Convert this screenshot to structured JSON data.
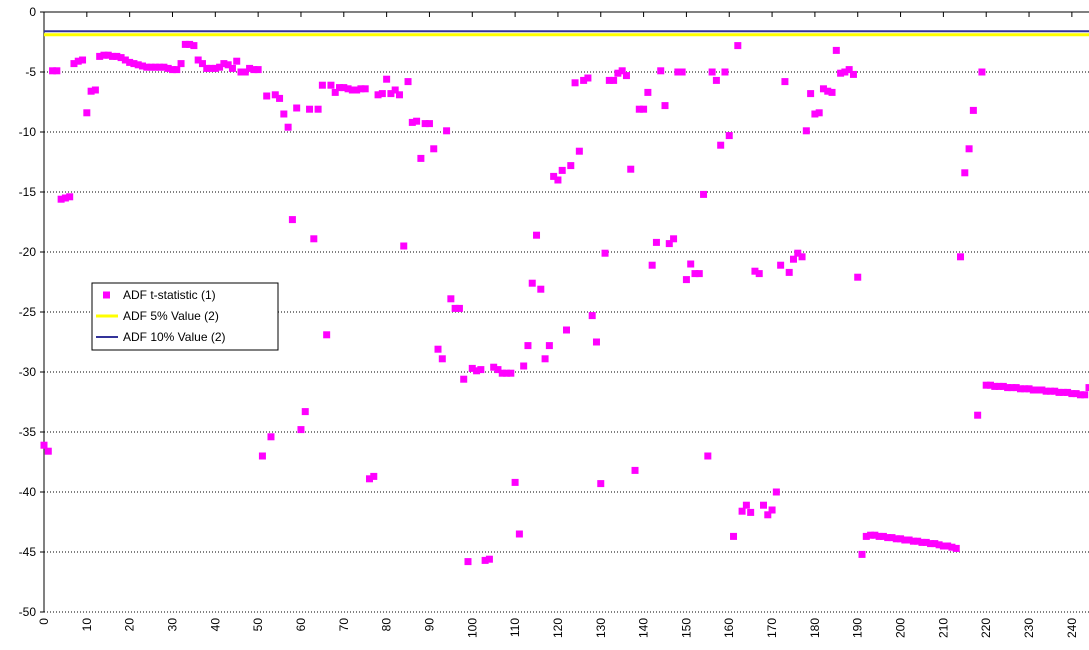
{
  "chart_data": {
    "type": "scatter",
    "xlim": [
      0,
      244
    ],
    "ylim": [
      -50,
      0
    ],
    "xticks": [
      0,
      10,
      20,
      30,
      40,
      50,
      60,
      70,
      80,
      90,
      100,
      110,
      120,
      130,
      140,
      150,
      160,
      170,
      180,
      190,
      200,
      210,
      220,
      230,
      240
    ],
    "yticks": [
      0,
      -5,
      -10,
      -15,
      -20,
      -25,
      -30,
      -35,
      -40,
      -45,
      -50
    ],
    "grid": true,
    "legend": "left",
    "series": [
      {
        "name": "ADF t-statistic (1)",
        "color": "#ff00ff",
        "kind": "marker",
        "x": [
          0,
          1,
          2,
          3,
          4,
          5,
          6,
          7,
          8,
          9,
          10,
          11,
          12,
          13,
          14,
          15,
          16,
          17,
          18,
          19,
          20,
          21,
          22,
          23,
          24,
          25,
          26,
          27,
          28,
          29,
          30,
          31,
          32,
          33,
          34,
          35,
          36,
          37,
          38,
          39,
          40,
          41,
          42,
          43,
          44,
          45,
          46,
          47,
          48,
          49,
          50,
          51,
          52,
          53,
          54,
          55,
          56,
          57,
          58,
          59,
          60,
          61,
          62,
          63,
          64,
          65,
          66,
          67,
          68,
          69,
          70,
          71,
          72,
          73,
          74,
          75,
          76,
          77,
          78,
          79,
          80,
          81,
          82,
          83,
          84,
          85,
          86,
          87,
          88,
          89,
          90,
          91,
          92,
          93,
          94,
          95,
          96,
          97,
          98,
          99,
          100,
          101,
          102,
          103,
          104,
          105,
          106,
          107,
          108,
          109,
          110,
          111,
          112,
          113,
          114,
          115,
          116,
          117,
          118,
          119,
          120,
          121,
          122,
          123,
          124,
          125,
          126,
          127,
          128,
          129,
          130,
          131,
          132,
          133,
          134,
          135,
          136,
          137,
          138,
          139,
          140,
          141,
          142,
          143,
          144,
          145,
          146,
          147,
          148,
          149,
          150,
          151,
          152,
          153,
          154,
          155,
          156,
          157,
          158,
          159,
          160,
          161,
          162,
          163,
          164,
          165,
          166,
          167,
          168,
          169,
          170,
          171,
          172,
          173,
          174,
          175,
          176,
          177,
          178,
          179,
          180,
          181,
          182,
          183,
          184,
          185,
          186,
          187,
          188,
          189,
          190,
          191,
          192,
          193,
          194,
          195,
          196,
          197,
          198,
          199,
          200,
          201,
          202,
          203,
          204,
          205,
          206,
          207,
          208,
          209,
          210,
          211,
          212,
          213,
          214,
          215,
          216,
          217,
          218,
          219,
          220,
          221,
          222,
          223,
          224,
          225,
          226,
          227,
          228,
          229,
          230,
          231,
          232,
          233,
          234,
          235,
          236,
          237,
          238,
          239,
          240,
          241,
          242,
          243,
          244
        ],
        "values": [
          -36.1,
          -36.6,
          -4.9,
          -4.9,
          -15.6,
          -15.5,
          -15.4,
          -4.3,
          -4.1,
          -4.0,
          -8.4,
          -6.6,
          -6.5,
          -3.7,
          -3.6,
          -3.6,
          -3.7,
          -3.7,
          -3.8,
          -4.0,
          -4.2,
          -4.3,
          -4.4,
          -4.5,
          -4.6,
          -4.6,
          -4.6,
          -4.6,
          -4.6,
          -4.7,
          -4.8,
          -4.8,
          -4.3,
          -2.7,
          -2.7,
          -2.8,
          -4.0,
          -4.3,
          -4.7,
          -4.7,
          -4.7,
          -4.6,
          -4.3,
          -4.4,
          -4.7,
          -4.1,
          -5.0,
          -5.0,
          -4.7,
          -4.8,
          -4.8,
          -37.0,
          -7.0,
          -35.4,
          -6.9,
          -7.2,
          -8.5,
          -9.6,
          -17.3,
          -8.0,
          -34.8,
          -33.3,
          -8.1,
          -18.9,
          -8.1,
          -6.1,
          -26.9,
          -6.1,
          -6.7,
          -6.3,
          -6.3,
          -6.4,
          -6.5,
          -6.5,
          -6.4,
          -6.4,
          -38.9,
          -38.7,
          -6.9,
          -6.8,
          -5.6,
          -6.8,
          -6.5,
          -6.9,
          -19.5,
          -5.8,
          -9.2,
          -9.1,
          -12.2,
          -9.3,
          -9.3,
          -11.4,
          -28.1,
          -28.9,
          -9.9,
          -23.9,
          -24.7,
          -24.7,
          -30.6,
          -45.8,
          -29.7,
          -29.9,
          -29.8,
          -45.7,
          -45.6,
          -29.6,
          -29.8,
          -30.1,
          -30.1,
          -30.1,
          -39.2,
          -43.5,
          -29.5,
          -27.8,
          -22.6,
          -18.6,
          -23.1,
          -28.9,
          -27.8,
          -13.7,
          -14.0,
          -13.2,
          -26.5,
          -12.8,
          -5.9,
          -11.6,
          -5.7,
          -5.5,
          -25.3,
          -27.5,
          -39.3,
          -20.1,
          -5.7,
          -5.7,
          -5.1,
          -4.9,
          -5.3,
          -13.1,
          -38.2,
          -8.1,
          -8.1,
          -6.7,
          -21.1,
          -19.2,
          -4.9,
          -7.8,
          -19.3,
          -18.9,
          -5.0,
          -5.0,
          -22.3,
          -21.0,
          -21.8,
          -21.8,
          -15.2,
          -37.0,
          -5.0,
          -5.7,
          -11.1,
          -5.0,
          -10.3,
          -43.7,
          -2.8,
          -41.6,
          -41.1,
          -41.7,
          -21.6,
          -21.8,
          -41.1,
          -41.9,
          -41.5,
          -40.0,
          -21.1,
          -5.8,
          -21.7,
          -20.6,
          -20.1,
          -20.4,
          -9.9,
          -6.8,
          -8.5,
          -8.4,
          -6.4,
          -6.6,
          -6.7,
          -3.2,
          -5.1,
          -5.0,
          -4.8,
          -5.2,
          -22.1,
          -45.2,
          -43.7,
          -43.6,
          -43.6,
          -43.7,
          -43.7,
          -43.8,
          -43.8,
          -43.9,
          -43.9,
          -44.0,
          -44.0,
          -44.1,
          -44.1,
          -44.2,
          -44.2,
          -44.3,
          -44.3,
          -44.4,
          -44.5,
          -44.5,
          -44.6,
          -44.7,
          -20.4,
          -13.4,
          -11.4,
          -8.2,
          -33.6,
          -5.0,
          -31.1,
          -31.1,
          -31.2,
          -31.2,
          -31.2,
          -31.3,
          -31.3,
          -31.3,
          -31.4,
          -31.4,
          -31.4,
          -31.5,
          -31.5,
          -31.5,
          -31.6,
          -31.6,
          -31.6,
          -31.7,
          -31.7,
          -31.7,
          -31.8,
          -31.8,
          -31.9,
          -31.9,
          -31.3
        ]
      },
      {
        "name": "ADF 5% Value (2)",
        "color": "#ffff00",
        "kind": "line",
        "x": [
          0,
          244
        ],
        "values": [
          -1.9,
          -1.9
        ]
      },
      {
        "name": "ADF 10% Value (2)",
        "color": "#333399",
        "kind": "line",
        "x": [
          0,
          244
        ],
        "values": [
          -1.6,
          -1.6
        ]
      }
    ]
  }
}
